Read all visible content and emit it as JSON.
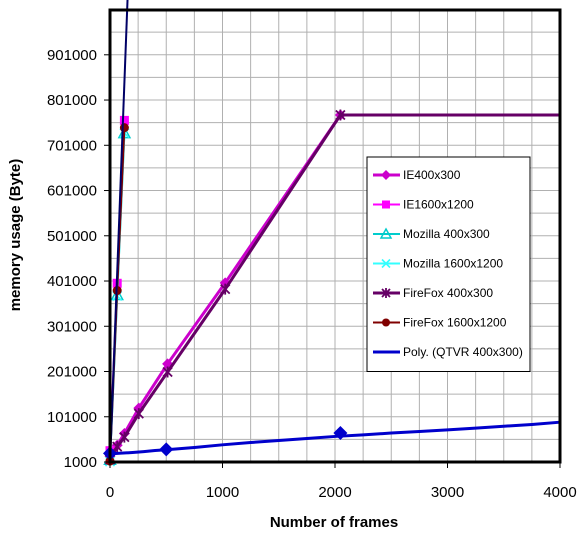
{
  "chart_data": {
    "type": "line",
    "title": "",
    "xlabel": "Number of frames",
    "ylabel": "memory usage (Byte)",
    "xlim": [
      0,
      4000
    ],
    "ylim": [
      1000,
      1000000
    ],
    "x_ticks": [
      0,
      1000,
      2000,
      3000,
      4000
    ],
    "y_ticks": [
      1000,
      101000,
      201000,
      301000,
      401000,
      501000,
      601000,
      701000,
      801000,
      901000
    ],
    "grid": true,
    "legend_position": "right",
    "series": [
      {
        "name": "IE400x300",
        "color": "#cc00cc",
        "marker": "diamond",
        "x": [
          0,
          64,
          128,
          256,
          512,
          1024,
          2048,
          4000
        ],
        "y": [
          14000,
          38000,
          64000,
          120000,
          218000,
          397000,
          768000,
          768000
        ]
      },
      {
        "name": "IE1600x1200",
        "color": "#ff00ff",
        "marker": "square",
        "x": [
          0,
          64,
          128
        ],
        "y": [
          26000,
          396000,
          756000
        ]
      },
      {
        "name": "Mozilla 400x300",
        "color": "#00cccc",
        "marker": "triangle",
        "x": [
          0,
          64,
          128
        ],
        "y": [
          6000,
          370000,
          728000
        ]
      },
      {
        "name": "Mozilla 1600x1200",
        "color": "#33ffff",
        "marker": "x",
        "x": [
          0,
          64,
          128
        ],
        "y": [
          2000,
          368000,
          728000
        ]
      },
      {
        "name": "FireFox 400x300",
        "color": "#660066",
        "marker": "asterisk",
        "x": [
          0,
          64,
          128,
          256,
          512,
          1024,
          2048,
          4000
        ],
        "y": [
          6000,
          35000,
          56000,
          108000,
          200000,
          383000,
          768000,
          768000
        ]
      },
      {
        "name": "FireFox 1600x1200",
        "color": "#800000",
        "marker": "circle",
        "x": [
          0,
          64,
          128
        ],
        "y": [
          3000,
          380000,
          740000
        ]
      },
      {
        "name": "Poly. (QTVR 400x300)",
        "color": "#0000cc",
        "marker": "line",
        "x": [
          0,
          100,
          200,
          300,
          400,
          500,
          750,
          1000,
          1250,
          1500,
          1750,
          2000,
          2250,
          2500,
          2750,
          3000,
          3250,
          3500,
          3750,
          4000
        ],
        "y": [
          19000,
          20500,
          22000,
          24000,
          26500,
          28000,
          33000,
          39000,
          44000,
          48500,
          53000,
          57500,
          61000,
          65000,
          68500,
          72000,
          76000,
          80000,
          84000,
          89000
        ]
      }
    ],
    "extra_points": [
      {
        "series": "QTVR 400x300",
        "color": "#0000cc",
        "marker": "diamond",
        "x": [
          0,
          500,
          2048
        ],
        "y": [
          20000,
          29000,
          65000
        ]
      }
    ],
    "steep_fit_line": {
      "color": "#000066",
      "x": [
        0,
        160
      ],
      "y": [
        0,
        1050000
      ]
    }
  }
}
